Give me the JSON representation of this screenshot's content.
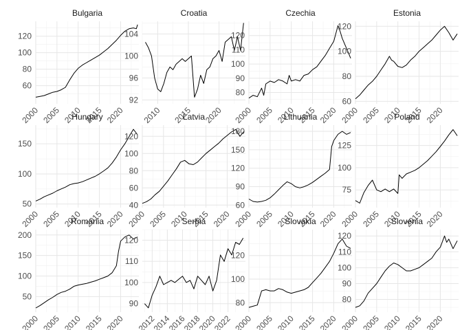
{
  "chart_data": [
    {
      "type": "line",
      "title": "Bulgaria",
      "xlim": [
        2000,
        2024.3
      ],
      "ylim": [
        38,
        138
      ],
      "yticks": [
        60,
        80,
        100,
        120
      ],
      "xticks": [
        2000,
        2005,
        2010,
        2015,
        2020
      ],
      "x": [
        2000,
        2001,
        2002,
        2003,
        2004,
        2005,
        2006,
        2007,
        2008,
        2009,
        2010,
        2011,
        2012,
        2013,
        2014,
        2015,
        2016,
        2017,
        2018,
        2019,
        2020,
        2021,
        2022,
        2023,
        2023.7,
        2024
      ],
      "y": [
        46,
        47,
        48,
        50,
        52,
        53,
        55,
        58,
        67,
        75,
        81,
        85,
        88,
        91,
        94,
        97,
        101,
        105,
        110,
        115,
        121,
        126,
        129,
        130,
        129,
        134
      ]
    },
    {
      "type": "line",
      "title": "Croatia",
      "xlim": [
        2007.5,
        2024.3
      ],
      "ylim": [
        91.3,
        106.3
      ],
      "yticks": [
        92,
        96,
        100,
        104
      ],
      "xticks": [
        2010,
        2015,
        2020
      ],
      "x": [
        2008,
        2008.5,
        2009,
        2009.5,
        2010,
        2010.5,
        2011,
        2011.5,
        2012,
        2012.5,
        2013,
        2013.5,
        2014,
        2014.5,
        2015,
        2015.5,
        2016,
        2016.5,
        2017,
        2017.5,
        2018,
        2018.5,
        2019,
        2019.5,
        2020,
        2020.5,
        2021,
        2021.5,
        2022,
        2022.5,
        2023,
        2023.5,
        2024
      ],
      "y": [
        102.5,
        101.5,
        100,
        96,
        94,
        93.5,
        95,
        97,
        98,
        97.5,
        98.5,
        99,
        99.5,
        99,
        99.5,
        100,
        92.5,
        94,
        96.5,
        95,
        97.5,
        98,
        99.5,
        100,
        101,
        99,
        102.5,
        103,
        103.5,
        101,
        103.5,
        101,
        106
      ]
    },
    {
      "type": "line",
      "title": "Czechia",
      "xlim": [
        2000,
        2024.3
      ],
      "ylim": [
        72,
        130
      ],
      "yticks": [
        80,
        90,
        100,
        110,
        120
      ],
      "xticks": [
        2000,
        2005,
        2010,
        2015,
        2020
      ],
      "x": [
        2000,
        2001,
        2002,
        2003,
        2003.5,
        2004,
        2005,
        2006,
        2007,
        2008,
        2009,
        2009.5,
        2010,
        2011,
        2012,
        2013,
        2014,
        2015,
        2016,
        2017,
        2018,
        2019,
        2020,
        2021,
        2021.5,
        2022,
        2023,
        2024
      ],
      "y": [
        76,
        78,
        77,
        83,
        78,
        86,
        88,
        87,
        89,
        88,
        86,
        92,
        88,
        89,
        88,
        92,
        93,
        96,
        98,
        102,
        106,
        111,
        116,
        127,
        123,
        118,
        111,
        104
      ]
    },
    {
      "type": "line",
      "title": "Estonia",
      "xlim": [
        2000,
        2024.3
      ],
      "ylim": [
        58,
        124
      ],
      "yticks": [
        60,
        80,
        100,
        120
      ],
      "xticks": [
        2000,
        2005,
        2010,
        2015,
        2020
      ],
      "x": [
        2000,
        2001,
        2002,
        2003,
        2004,
        2005,
        2006,
        2007,
        2008,
        2008.5,
        2009,
        2010,
        2011,
        2012,
        2013,
        2014,
        2015,
        2016,
        2017,
        2018,
        2019,
        2020,
        2021,
        2022,
        2023,
        2024
      ],
      "y": [
        62,
        65,
        69,
        73,
        76,
        80,
        85,
        90,
        96,
        93,
        92,
        88,
        87,
        89,
        93,
        96,
        100,
        103,
        106,
        109,
        113,
        117,
        120,
        115,
        109,
        114
      ]
    },
    {
      "type": "line",
      "title": "Hungary",
      "xlim": [
        2000,
        2024.3
      ],
      "ylim": [
        44,
        181
      ],
      "yticks": [
        50,
        100,
        150
      ],
      "xticks": [
        2000,
        2005,
        2010,
        2015,
        2020
      ],
      "x": [
        2000,
        2001,
        2002,
        2003,
        2004,
        2005,
        2006,
        2007,
        2008,
        2009,
        2010,
        2011,
        2012,
        2013,
        2014,
        2015,
        2016,
        2017,
        2018,
        2019,
        2020,
        2021,
        2022,
        2023,
        2024
      ],
      "y": [
        55,
        58,
        62,
        65,
        68,
        72,
        75,
        78,
        82,
        84,
        85,
        87,
        90,
        93,
        96,
        100,
        105,
        110,
        118,
        128,
        140,
        150,
        162,
        174,
        165
      ]
    },
    {
      "type": "line",
      "title": "Latvia",
      "xlim": [
        2000,
        2024.3
      ],
      "ylim": [
        37,
        133
      ],
      "yticks": [
        40,
        60,
        80,
        100,
        120
      ],
      "xticks": [
        2000,
        2005,
        2010,
        2015,
        2020
      ],
      "x": [
        2000,
        2001,
        2002,
        2003,
        2004,
        2005,
        2006,
        2007,
        2008,
        2009,
        2010,
        2011,
        2012,
        2013,
        2014,
        2015,
        2016,
        2017,
        2018,
        2019,
        2020,
        2021,
        2022,
        2023,
        2024
      ],
      "y": [
        42,
        44,
        47,
        52,
        56,
        62,
        68,
        75,
        82,
        90,
        92,
        88,
        87,
        90,
        95,
        100,
        104,
        108,
        112,
        117,
        121,
        125,
        128,
        120,
        126
      ]
    },
    {
      "type": "line",
      "title": "Lithuania",
      "xlim": [
        2000,
        2024.3
      ],
      "ylim": [
        56,
        190
      ],
      "yticks": [
        60,
        90,
        120,
        150,
        180
      ],
      "xticks": [
        2000,
        2005,
        2010,
        2015,
        2020
      ],
      "x": [
        2000,
        2001,
        2002,
        2003,
        2004,
        2005,
        2006,
        2007,
        2008,
        2009,
        2010,
        2011,
        2012,
        2013,
        2014,
        2015,
        2016,
        2017,
        2018,
        2019,
        2019.5,
        2020,
        2021,
        2022,
        2023,
        2024
      ],
      "y": [
        70,
        66,
        65,
        66,
        68,
        72,
        78,
        85,
        92,
        98,
        95,
        90,
        88,
        90,
        93,
        97,
        102,
        107,
        112,
        118,
        155,
        165,
        175,
        180,
        175,
        178
      ]
    },
    {
      "type": "line",
      "title": "Poland",
      "xlim": [
        2000,
        2024.3
      ],
      "ylim": [
        55,
        148
      ],
      "yticks": [
        75,
        100,
        125
      ],
      "xticks": [
        2000,
        2005,
        2010,
        2015,
        2020
      ],
      "x": [
        2000,
        2001,
        2002,
        2003,
        2004,
        2005,
        2006,
        2007,
        2008,
        2009,
        2010,
        2010.3,
        2011,
        2012,
        2013,
        2014,
        2015,
        2016,
        2017,
        2018,
        2019,
        2020,
        2021,
        2022,
        2023,
        2024
      ],
      "y": [
        63,
        60,
        72,
        80,
        86,
        75,
        73,
        76,
        73,
        76,
        71,
        92,
        88,
        93,
        95,
        97,
        100,
        104,
        108,
        113,
        118,
        124,
        130,
        137,
        143,
        136
      ]
    },
    {
      "type": "line",
      "title": "Romania",
      "xlim": [
        2000,
        2024.3
      ],
      "ylim": [
        12,
        213
      ],
      "yticks": [
        50,
        100,
        150,
        200
      ],
      "xticks": [
        2000,
        2005,
        2010,
        2015,
        2020
      ],
      "x": [
        2000,
        2001,
        2002,
        2003,
        2004,
        2005,
        2006,
        2007,
        2008,
        2009,
        2010,
        2011,
        2012,
        2013,
        2014,
        2015,
        2016,
        2017,
        2018,
        2019,
        2019.5,
        2020,
        2021,
        2022,
        2023,
        2024
      ],
      "y": [
        22,
        28,
        35,
        42,
        48,
        55,
        60,
        63,
        68,
        75,
        78,
        80,
        82,
        85,
        88,
        92,
        96,
        100,
        108,
        125,
        160,
        185,
        195,
        200,
        190,
        195
      ]
    },
    {
      "type": "line",
      "title": "Serbia",
      "xlim": [
        2010.7,
        2024.3
      ],
      "ylim": [
        86,
        125
      ],
      "yticks": [
        90,
        100,
        110,
        120
      ],
      "xticks": [
        2012,
        2014,
        2016,
        2018,
        2020,
        2022
      ],
      "x": [
        2011,
        2011.5,
        2012,
        2012.5,
        2013,
        2013.5,
        2014,
        2014.5,
        2015,
        2015.5,
        2016,
        2016.5,
        2017,
        2017.5,
        2018,
        2018.5,
        2019,
        2019.5,
        2020,
        2020.5,
        2021,
        2021.5,
        2022,
        2022.5,
        2023,
        2023.5,
        2024
      ],
      "y": [
        90,
        88,
        94,
        98,
        103,
        99,
        100,
        101,
        100,
        101.5,
        103,
        100,
        101,
        97,
        103,
        101,
        99,
        103,
        96,
        101,
        113,
        110,
        116,
        113,
        119,
        118,
        121
      ]
    },
    {
      "type": "line",
      "title": "Slovakia",
      "xlim": [
        2000,
        2024.3
      ],
      "ylim": [
        72,
        142
      ],
      "yticks": [
        80,
        100,
        120
      ],
      "xticks": [
        2000,
        2005,
        2010,
        2015,
        2020
      ],
      "x": [
        2000,
        2001,
        2002,
        2003,
        2004,
        2005,
        2006,
        2007,
        2008,
        2009,
        2010,
        2011,
        2012,
        2013,
        2014,
        2015,
        2016,
        2017,
        2018,
        2019,
        2020,
        2021,
        2022,
        2023,
        2024
      ],
      "y": [
        76,
        77,
        78,
        90,
        91,
        90,
        90,
        92,
        91,
        89,
        88,
        89,
        90,
        91,
        93,
        97,
        101,
        105,
        110,
        115,
        122,
        130,
        134,
        128,
        126
      ]
    },
    {
      "type": "line",
      "title": "Slovenia",
      "xlim": [
        2000,
        2024.3
      ],
      "ylim": [
        72,
        124
      ],
      "yticks": [
        80,
        90,
        100,
        110,
        120
      ],
      "xticks": [
        2000,
        2005,
        2010,
        2015,
        2020
      ],
      "x": [
        2000,
        2001,
        2002,
        2003,
        2004,
        2005,
        2006,
        2007,
        2008,
        2009,
        2010,
        2011,
        2012,
        2013,
        2014,
        2015,
        2016,
        2017,
        2018,
        2019,
        2020,
        2021,
        2021.5,
        2022,
        2023,
        2024
      ],
      "y": [
        75,
        76,
        79,
        84,
        87,
        90,
        94,
        98,
        101,
        103,
        102,
        100,
        98,
        98,
        99,
        100,
        102,
        104,
        106,
        110,
        113,
        120,
        116,
        118,
        112,
        117
      ]
    }
  ]
}
